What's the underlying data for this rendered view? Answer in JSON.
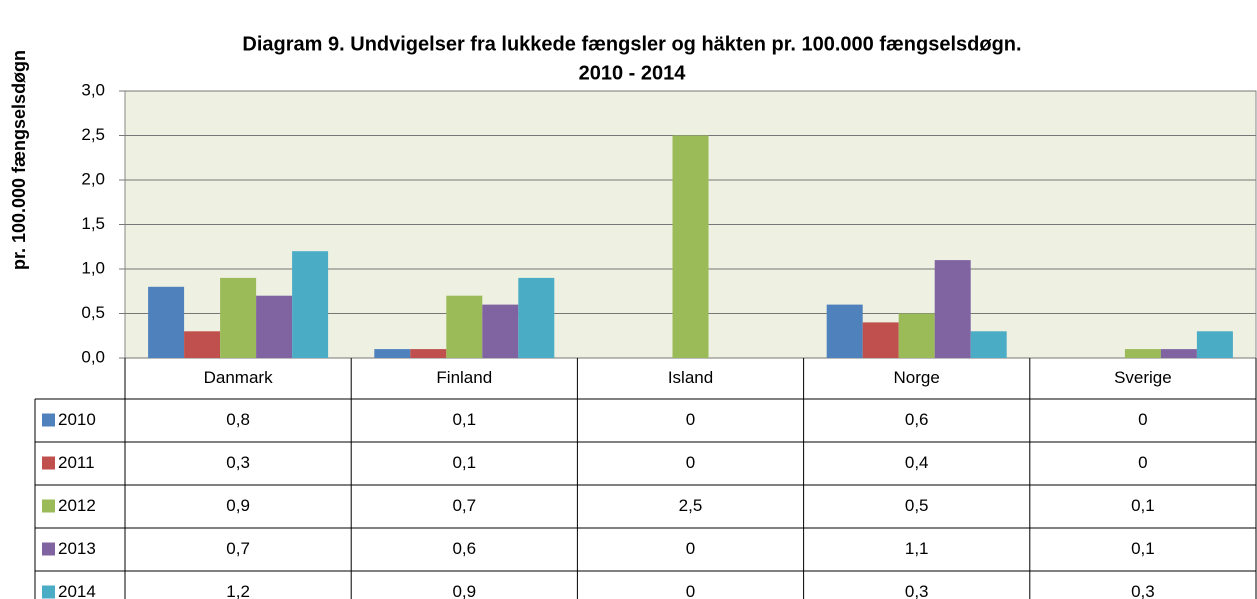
{
  "chart_data": {
    "type": "bar",
    "title": [
      "Diagram 9. Undvigelser fra lukkede fængsler og  häkten pr. 100.000 fængselsdøgn.",
      "2010 - 2014"
    ],
    "y_label": "pr. 100.000 fængselsdøgn",
    "categories": [
      "Danmark",
      "Finland",
      "Island",
      "Norge",
      "Sverige"
    ],
    "series": [
      {
        "name": "2010",
        "color": "#4f81bd",
        "values": [
          0.8,
          0.1,
          0,
          0.6,
          0
        ],
        "value_labels": [
          "0,8",
          "0,1",
          "0",
          "0,6",
          "0"
        ]
      },
      {
        "name": "2011",
        "color": "#c0504d",
        "values": [
          0.3,
          0.1,
          0,
          0.4,
          0
        ],
        "value_labels": [
          "0,3",
          "0,1",
          "0",
          "0,4",
          "0"
        ]
      },
      {
        "name": "2012",
        "color": "#9bbb59",
        "values": [
          0.9,
          0.7,
          2.5,
          0.5,
          0.1
        ],
        "value_labels": [
          "0,9",
          "0,7",
          "2,5",
          "0,5",
          "0,1"
        ]
      },
      {
        "name": "2013",
        "color": "#8064a2",
        "values": [
          0.7,
          0.6,
          0,
          1.1,
          0.1
        ],
        "value_labels": [
          "0,7",
          "0,6",
          "0",
          "1,1",
          "0,1"
        ]
      },
      {
        "name": "2014",
        "color": "#4bacc6",
        "values": [
          1.2,
          0.9,
          0,
          0.3,
          0.3
        ],
        "value_labels": [
          "1,2",
          "0,9",
          "0",
          "0,3",
          "0,3"
        ]
      }
    ],
    "ylim": [
      0,
      3
    ],
    "yticks": [
      {
        "value": 0,
        "label": "0,0"
      },
      {
        "value": 0.5,
        "label": "0,5"
      },
      {
        "value": 1,
        "label": "1,0"
      },
      {
        "value": 1.5,
        "label": "1,5"
      },
      {
        "value": 2,
        "label": "2,0"
      },
      {
        "value": 2.5,
        "label": "2,5"
      },
      {
        "value": 3,
        "label": "3,0"
      }
    ],
    "grid": true,
    "background": "#eef0e1"
  }
}
